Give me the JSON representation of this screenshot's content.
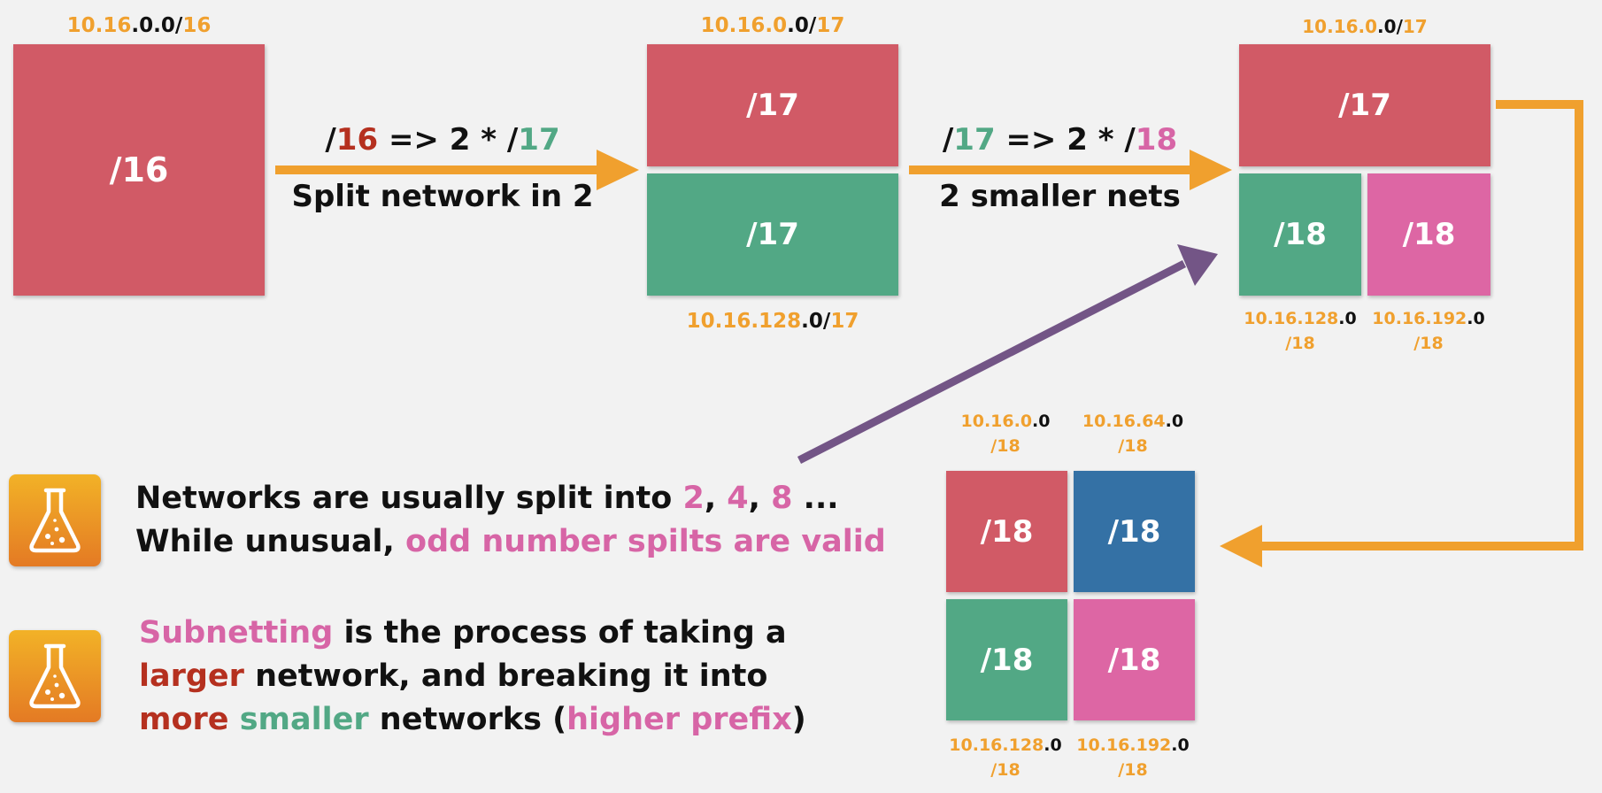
{
  "colors": {
    "orange": "#f0a02e",
    "red_block": "#d15a66",
    "green_block": "#52a885",
    "pink_block": "#dd66a4",
    "blue_block": "#3471a5",
    "purple_arrow": "#735586",
    "dark_red_text": "#b5301f",
    "pink_text": "#d765a6"
  },
  "stage1": {
    "top": {
      "net": "10.16",
      "host": ".0.0",
      "slash": "/",
      "prefix": "16"
    },
    "block": "/16"
  },
  "step1": {
    "formula": {
      "s1": "/",
      "n1": "16",
      "mid": " => 2 * /",
      "n2": "17"
    },
    "caption": "Split network in 2"
  },
  "stage2": {
    "top": {
      "net": "10.16.0",
      "host": ".0",
      "slash": "/",
      "prefix": "17"
    },
    "upper_block": "/17",
    "lower_block": "/17",
    "bottom": {
      "net": "10.16.128",
      "host": ".0",
      "slash": "/",
      "prefix": "17"
    }
  },
  "step2": {
    "formula": {
      "s1": "/",
      "n1": "17",
      "mid": " => 2 * /",
      "n2": "18"
    },
    "caption": "2 smaller nets"
  },
  "stage3": {
    "top": {
      "net": "10.16.0",
      "host": ".0",
      "slash": "/",
      "prefix": "17"
    },
    "upper_block": "/17",
    "left_block": "/18",
    "right_block": "/18",
    "left_label": {
      "net": "10.16.128",
      "host": ".0",
      "line2": "/18"
    },
    "right_label": {
      "net": "10.16.192",
      "host": ".0",
      "line2": "/18"
    }
  },
  "stage4": {
    "top_left_label": {
      "net": "10.16.0",
      "host": ".0",
      "line2": "/18"
    },
    "top_right_label": {
      "net": "10.16.64",
      "host": ".0",
      "line2": "/18"
    },
    "blocks": [
      "/18",
      "/18",
      "/18",
      "/18"
    ],
    "bottom_left_label": {
      "net": "10.16.128",
      "host": ".0",
      "line2": "/18"
    },
    "bottom_right_label": {
      "net": "10.16.192",
      "host": ".0",
      "line2": "/18"
    }
  },
  "note1": {
    "line1_a": "Networks are usually split into ",
    "n2": "2",
    "c1": ", ",
    "n4": "4",
    "c2": ", ",
    "n8": "8",
    "tail": " ...",
    "line2_a": "While unusual, ",
    "line2_b": "odd number spilts are valid"
  },
  "note2": {
    "w_subnetting": "Subnetting",
    "r1": " is the process of taking a",
    "w_larger": "larger",
    "r2": " network, and breaking it into",
    "w_more": "more",
    "sp": " ",
    "w_smaller": "smaller",
    "r3": " networks (",
    "w_higher": "higher prefix",
    "r4": ")"
  },
  "icons": [
    "flask-icon",
    "flask-icon"
  ]
}
